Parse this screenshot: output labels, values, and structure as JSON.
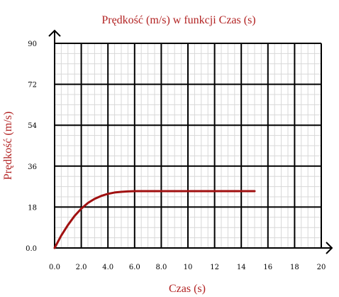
{
  "chart_data": {
    "type": "line",
    "title": "Prędkość (m/s) w funkcji Czas (s)",
    "xlabel": "Czas (s)",
    "ylabel": "Prędkość (m/s)",
    "xlim": [
      0,
      20
    ],
    "ylim": [
      0,
      90
    ],
    "x_ticks": [
      "0.0",
      "2.0",
      "4.0",
      "6.0",
      "8.0",
      "10",
      "12",
      "14",
      "16",
      "18",
      "20"
    ],
    "y_ticks": [
      "0.0",
      "18",
      "36",
      "54",
      "72",
      "90"
    ],
    "grid": true,
    "line_color": "#a01010",
    "title_color": "#b22222",
    "series": [
      {
        "x": [
          0,
          0.5,
          1.0,
          1.5,
          2.0,
          2.5,
          3.0,
          3.5,
          4.0,
          4.5,
          5.0,
          5.5,
          6.0,
          7.0,
          8.0,
          9.0,
          10.0,
          11.0,
          12.0,
          13.0,
          14.0,
          15.0
        ],
        "y": [
          0,
          5.5,
          10.1,
          14.1,
          17.3,
          19.8,
          21.6,
          22.9,
          23.8,
          24.4,
          24.7,
          24.9,
          25.0,
          25.0,
          25.0,
          25.0,
          25.0,
          25.0,
          25.0,
          25.0,
          25.0,
          25.0
        ]
      }
    ]
  }
}
